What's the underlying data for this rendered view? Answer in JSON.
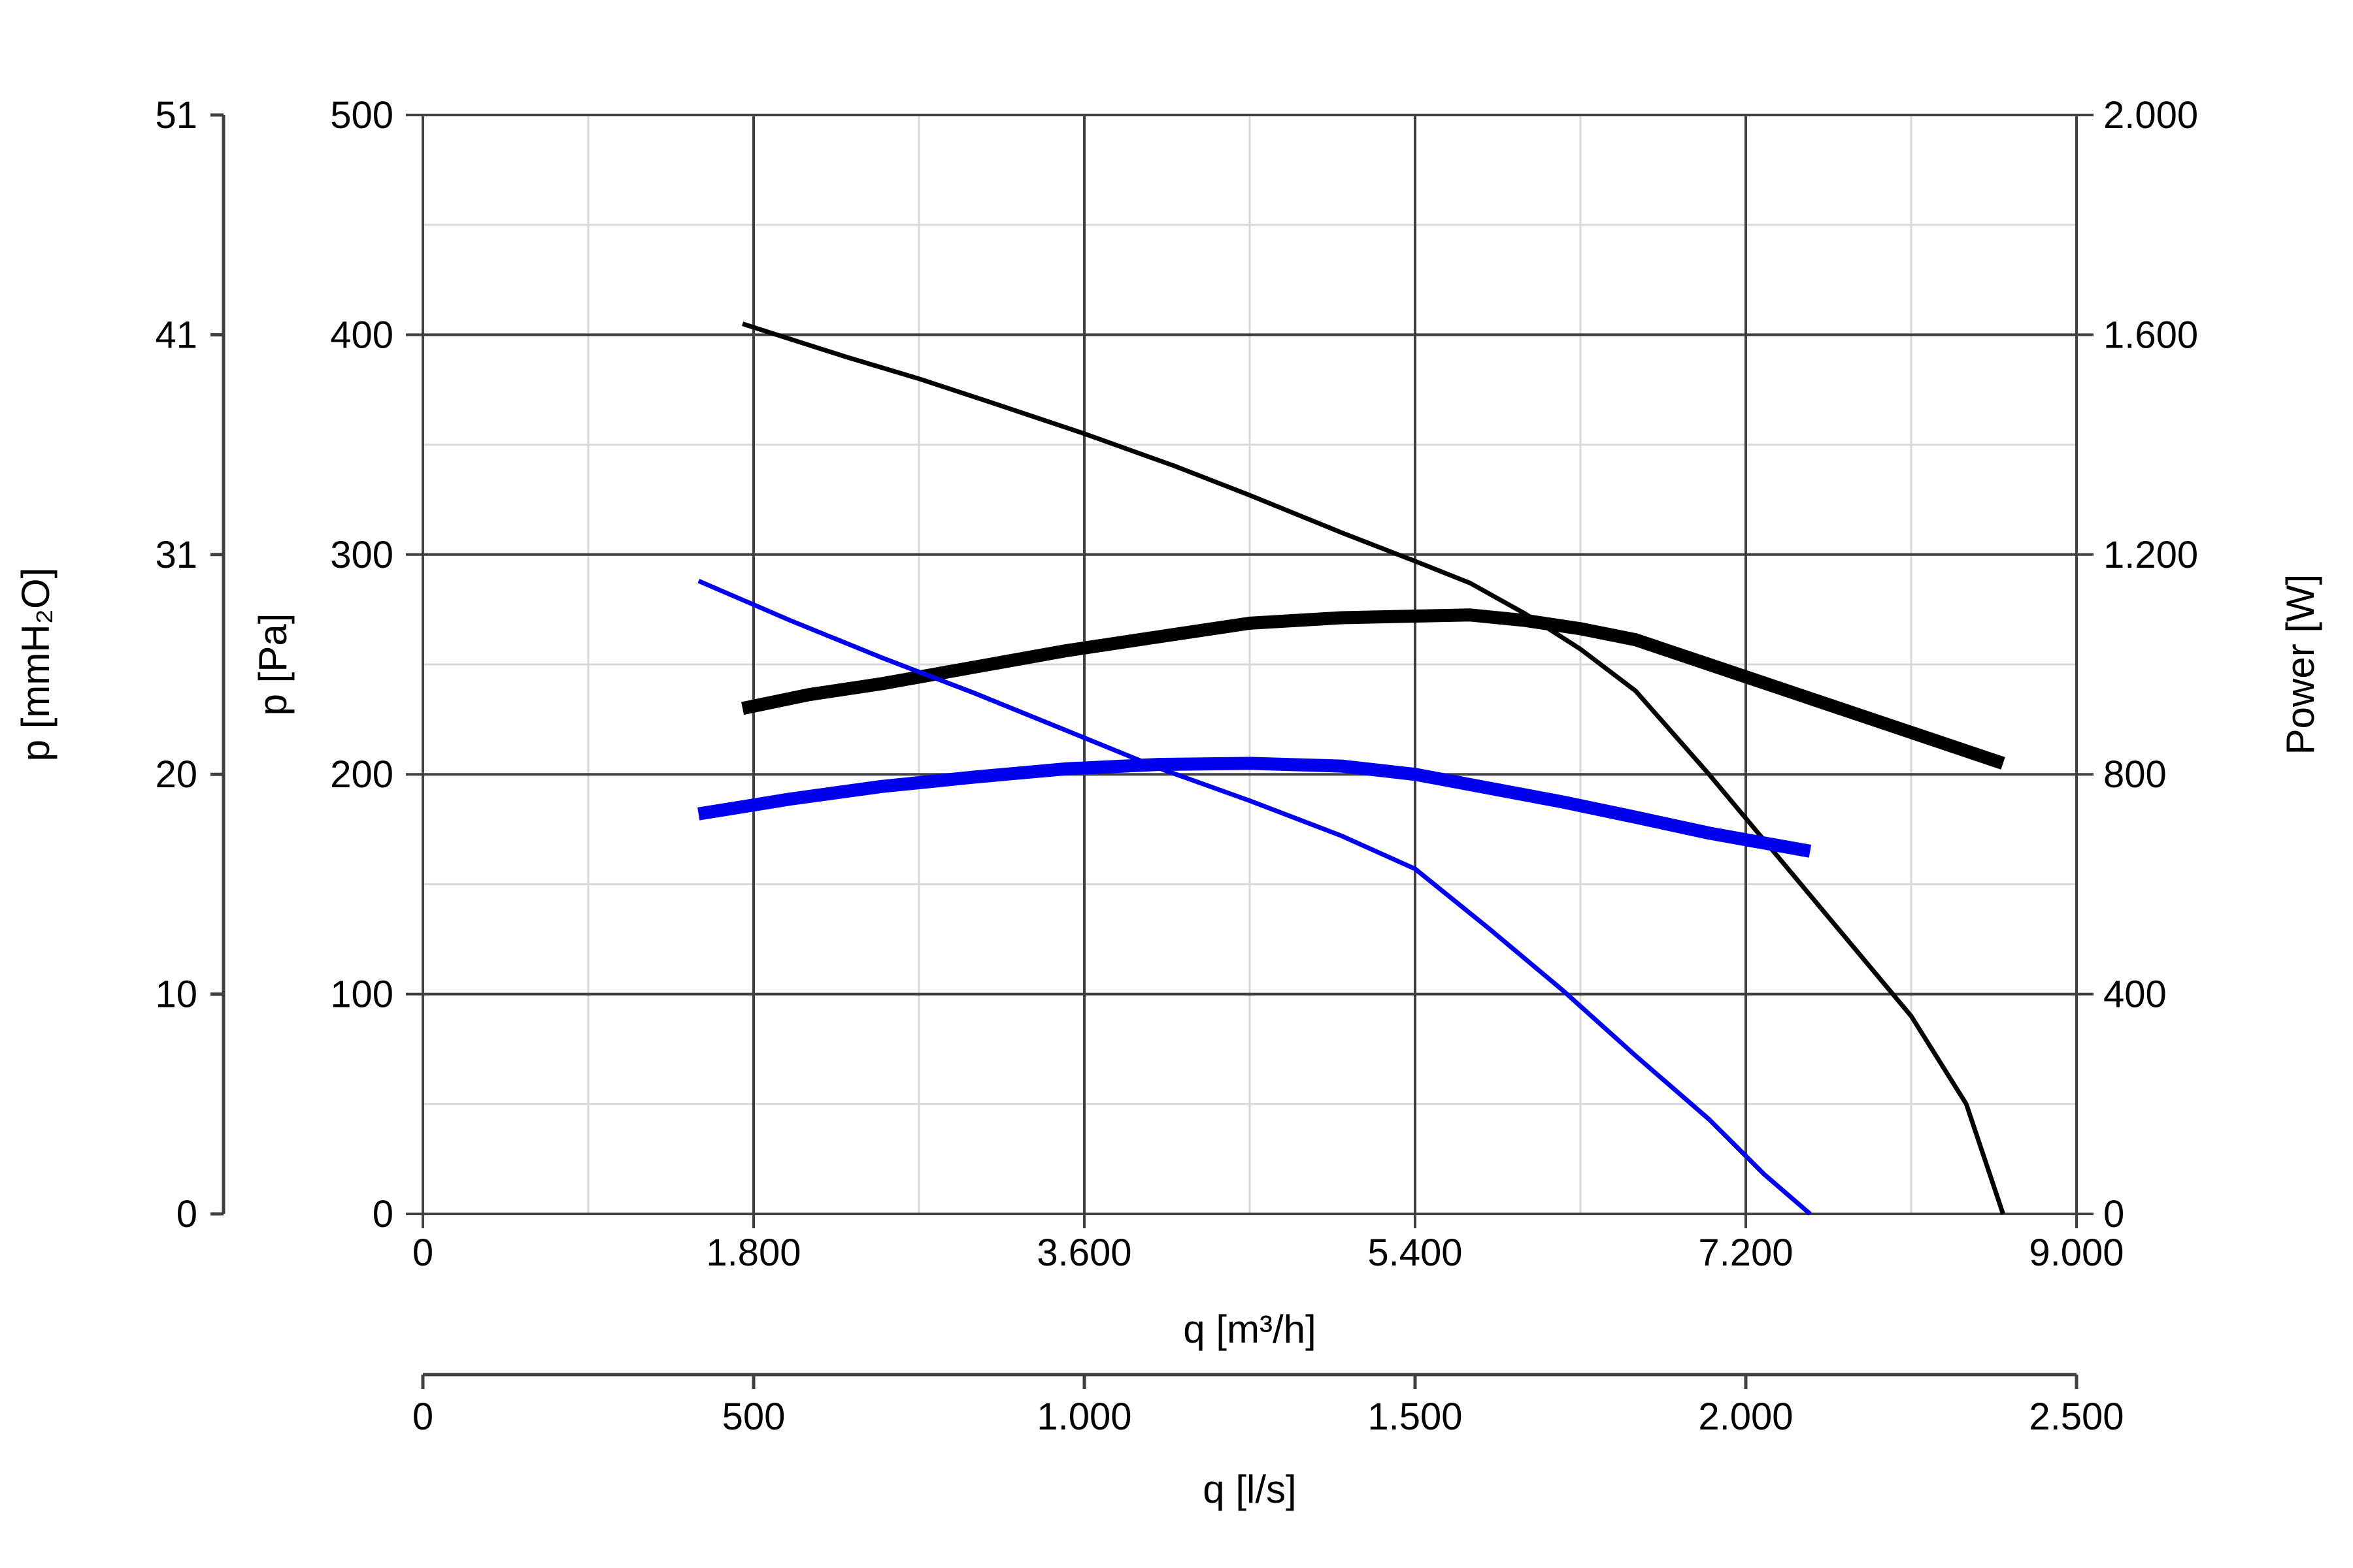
{
  "chart_data": {
    "type": "line",
    "x_axis": {
      "label": "q [m³/h]",
      "range": [
        0,
        9000
      ],
      "ticks": [
        0,
        1800,
        3600,
        5400,
        7200,
        9000
      ],
      "tick_labels": [
        "0",
        "1.800",
        "3.600",
        "5.400",
        "7.200",
        "9.000"
      ],
      "minor_ticks": [
        900,
        2700,
        4500,
        6300,
        8100
      ]
    },
    "x2_axis": {
      "label": "q [l/s]",
      "range": [
        0,
        2500
      ],
      "ticks": [
        0,
        500,
        1000,
        1500,
        2000,
        2500
      ],
      "tick_labels": [
        "0",
        "500",
        "1.000",
        "1.500",
        "2.000",
        "2.500"
      ]
    },
    "y_axis": {
      "label": "p [Pa]",
      "range": [
        0,
        500
      ],
      "ticks": [
        0,
        100,
        200,
        300,
        400,
        500
      ],
      "tick_labels": [
        "0",
        "100",
        "200",
        "300",
        "400",
        "500"
      ],
      "minor_ticks": [
        50,
        150,
        250,
        350,
        450
      ]
    },
    "y_left_outer_axis": {
      "label": "p [mmH₂O]",
      "range": [
        0,
        51
      ],
      "tick_labels": [
        "0",
        "10",
        "20",
        "31",
        "41",
        "51"
      ],
      "tick_values_pa": [
        0,
        100,
        200,
        300,
        400,
        500
      ]
    },
    "y2_axis": {
      "label": "Power [W]",
      "range": [
        0,
        2000
      ],
      "ticks": [
        0,
        400,
        800,
        1200,
        1600,
        2000
      ],
      "tick_labels": [
        "0",
        "400",
        "800",
        "1.200",
        "1.600",
        "2.000"
      ]
    },
    "grid": true,
    "colors": {
      "black_series": "#000000",
      "blue_series": "#0000ee",
      "major_grid": "#404040",
      "minor_grid": "#d9d9d9"
    },
    "series": [
      {
        "axis": "pressure",
        "color": "#000000",
        "weight": "thin",
        "x": [
          1740,
          2000,
          2300,
          2700,
          3100,
          3600,
          4100,
          4500,
          5000,
          5400,
          5700,
          6000,
          6300,
          6600,
          7000,
          7400,
          7800,
          8100,
          8400,
          8600
        ],
        "y": [
          405,
          398,
          390,
          380,
          369,
          355,
          340,
          327,
          310,
          297,
          287,
          273,
          257,
          238,
          200,
          160,
          120,
          90,
          50,
          0
        ]
      },
      {
        "axis": "power",
        "color": "#000000",
        "weight": "thick",
        "x": [
          1740,
          2100,
          2500,
          3000,
          3500,
          4000,
          4500,
          5000,
          5400,
          5700,
          6000,
          6300,
          6600,
          7000,
          7400,
          7800,
          8200,
          8600
        ],
        "y": [
          920,
          945,
          965,
          995,
          1025,
          1050,
          1075,
          1085,
          1088,
          1090,
          1080,
          1065,
          1045,
          1000,
          955,
          910,
          865,
          820
        ]
      },
      {
        "axis": "pressure",
        "color": "#0000ee",
        "weight": "thin",
        "x": [
          1500,
          2000,
          2500,
          3000,
          3500,
          4000,
          4500,
          5000,
          5400,
          5800,
          6200,
          6600,
          7000,
          7300,
          7550
        ],
        "y": [
          288,
          270,
          253,
          237,
          220,
          203,
          188,
          172,
          157,
          130,
          102,
          72,
          43,
          18,
          0
        ]
      },
      {
        "axis": "power",
        "color": "#0000ee",
        "weight": "thick",
        "x": [
          1500,
          2000,
          2500,
          3000,
          3500,
          4000,
          4500,
          5000,
          5400,
          5800,
          6200,
          6600,
          7000,
          7300,
          7550
        ],
        "y": [
          728,
          755,
          778,
          795,
          810,
          818,
          820,
          815,
          800,
          775,
          750,
          722,
          693,
          675,
          660
        ]
      }
    ]
  }
}
